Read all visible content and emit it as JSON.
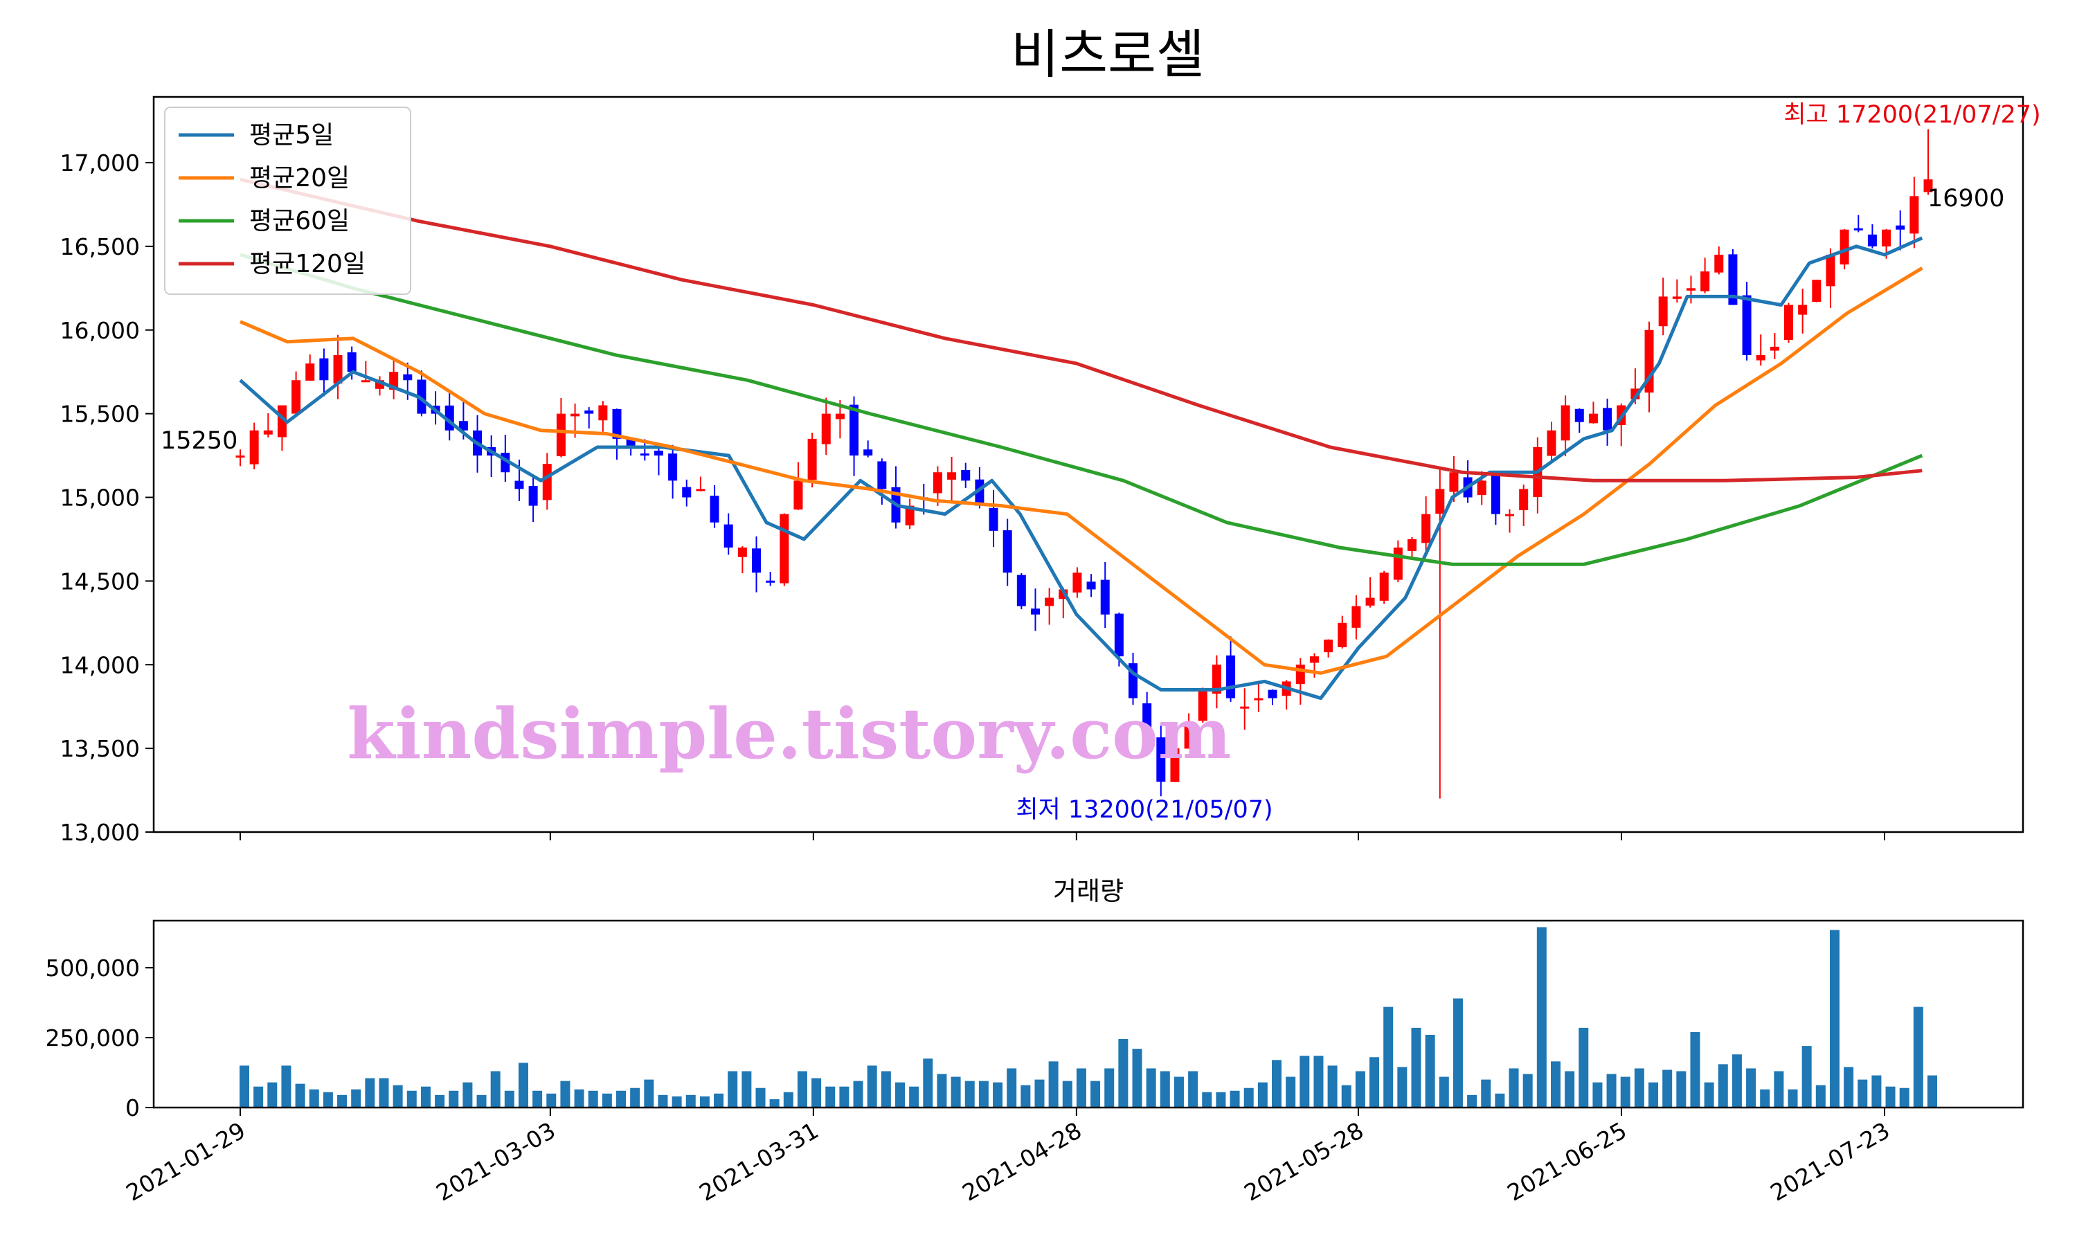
{
  "chart_data": [
    {
      "type": "candlestick",
      "title": "비츠로셀",
      "ylim": [
        13000,
        17500
      ],
      "yticks": [
        13000,
        13500,
        14000,
        14500,
        15000,
        15500,
        16000,
        16500,
        17000
      ],
      "ytick_labels": [
        "13,000",
        "13,500",
        "14,000",
        "14,500",
        "15,000",
        "15,500",
        "16,000",
        "16,500",
        "17,000"
      ],
      "x_range": [
        "2021-01-29",
        "2021-07-27"
      ],
      "xticks": [
        "2021-01-29",
        "2021-03-03",
        "2021-03-31",
        "2021-04-28",
        "2021-05-28",
        "2021-06-25",
        "2021-07-23"
      ],
      "grid": false,
      "legend_position": "top-left",
      "up_color": "#ff0000",
      "down_color": "#0000ff",
      "candles_anchor_closes": [
        [
          "2021-01-29",
          15250
        ],
        [
          "2021-02-05",
          15800
        ],
        [
          "2021-02-15",
          15700
        ],
        [
          "2021-03-02",
          15000
        ],
        [
          "2021-03-05",
          15600
        ],
        [
          "2021-03-17",
          15100
        ],
        [
          "2021-03-26",
          14500
        ],
        [
          "2021-04-01",
          15600
        ],
        [
          "2021-04-09",
          14900
        ],
        [
          "2021-04-16",
          15200
        ],
        [
          "2021-04-23",
          14300
        ],
        [
          "2021-04-30",
          14500
        ],
        [
          "2021-05-07",
          13300
        ],
        [
          "2021-05-12",
          14000
        ],
        [
          "2021-05-18",
          13700
        ],
        [
          "2021-05-25",
          14100
        ],
        [
          "2021-06-01",
          14700
        ],
        [
          "2021-06-07",
          15100
        ],
        [
          "2021-06-14",
          14900
        ],
        [
          "2021-06-17",
          15500
        ],
        [
          "2021-06-24",
          15400
        ],
        [
          "2021-06-30",
          16200
        ],
        [
          "2021-07-05",
          16500
        ],
        [
          "2021-07-09",
          15700
        ],
        [
          "2021-07-15",
          16300
        ],
        [
          "2021-07-19",
          16700
        ],
        [
          "2021-07-22",
          16400
        ],
        [
          "2021-07-27",
          16900
        ]
      ],
      "series": [
        {
          "name": "평균5일",
          "color": "#1f77b4",
          "points": [
            [
              "2021-01-29",
              15700
            ],
            [
              "2021-02-03",
              15450
            ],
            [
              "2021-02-10",
              15750
            ],
            [
              "2021-02-17",
              15600
            ],
            [
              "2021-02-23",
              15330
            ],
            [
              "2021-03-02",
              15100
            ],
            [
              "2021-03-08",
              15300
            ],
            [
              "2021-03-15",
              15300
            ],
            [
              "2021-03-22",
              15250
            ],
            [
              "2021-03-26",
              14850
            ],
            [
              "2021-03-30",
              14750
            ],
            [
              "2021-04-05",
              15100
            ],
            [
              "2021-04-09",
              14950
            ],
            [
              "2021-04-14",
              14900
            ],
            [
              "2021-04-19",
              15100
            ],
            [
              "2021-04-22",
              14900
            ],
            [
              "2021-04-28",
              14300
            ],
            [
              "2021-05-04",
              13950
            ],
            [
              "2021-05-07",
              13850
            ],
            [
              "2021-05-13",
              13850
            ],
            [
              "2021-05-18",
              13900
            ],
            [
              "2021-05-24",
              13800
            ],
            [
              "2021-05-28",
              14100
            ],
            [
              "2021-06-02",
              14400
            ],
            [
              "2021-06-07",
              15000
            ],
            [
              "2021-06-11",
              15150
            ],
            [
              "2021-06-16",
              15150
            ],
            [
              "2021-06-21",
              15350
            ],
            [
              "2021-06-24",
              15400
            ],
            [
              "2021-06-29",
              15800
            ],
            [
              "2021-07-02",
              16200
            ],
            [
              "2021-07-07",
              16200
            ],
            [
              "2021-07-12",
              16150
            ],
            [
              "2021-07-15",
              16400
            ],
            [
              "2021-07-20",
              16500
            ],
            [
              "2021-07-23",
              16450
            ],
            [
              "2021-07-27",
              16550
            ]
          ]
        },
        {
          "name": "평균20일",
          "color": "#ff7f0e",
          "points": [
            [
              "2021-01-29",
              16050
            ],
            [
              "2021-02-03",
              15930
            ],
            [
              "2021-02-10",
              15950
            ],
            [
              "2021-02-17",
              15750
            ],
            [
              "2021-02-24",
              15500
            ],
            [
              "2021-03-02",
              15400
            ],
            [
              "2021-03-09",
              15380
            ],
            [
              "2021-03-16",
              15300
            ],
            [
              "2021-03-23",
              15200
            ],
            [
              "2021-03-30",
              15100
            ],
            [
              "2021-04-06",
              15050
            ],
            [
              "2021-04-13",
              14980
            ],
            [
              "2021-04-20",
              14950
            ],
            [
              "2021-04-27",
              14900
            ],
            [
              "2021-05-04",
              14600
            ],
            [
              "2021-05-11",
              14300
            ],
            [
              "2021-05-18",
              14000
            ],
            [
              "2021-05-24",
              13950
            ],
            [
              "2021-05-31",
              14050
            ],
            [
              "2021-06-07",
              14350
            ],
            [
              "2021-06-14",
              14650
            ],
            [
              "2021-06-21",
              14900
            ],
            [
              "2021-06-28",
              15200
            ],
            [
              "2021-07-05",
              15550
            ],
            [
              "2021-07-12",
              15800
            ],
            [
              "2021-07-19",
              16100
            ],
            [
              "2021-07-27",
              16370
            ]
          ]
        },
        {
          "name": "평균60일",
          "color": "#2ca02c",
          "points": [
            [
              "2021-01-29",
              16450
            ],
            [
              "2021-02-10",
              16250
            ],
            [
              "2021-02-24",
              16050
            ],
            [
              "2021-03-10",
              15850
            ],
            [
              "2021-03-24",
              15700
            ],
            [
              "2021-04-06",
              15500
            ],
            [
              "2021-04-20",
              15300
            ],
            [
              "2021-05-03",
              15100
            ],
            [
              "2021-05-14",
              14850
            ],
            [
              "2021-05-26",
              14700
            ],
            [
              "2021-06-07",
              14600
            ],
            [
              "2021-06-21",
              14600
            ],
            [
              "2021-07-02",
              14750
            ],
            [
              "2021-07-14",
              14950
            ],
            [
              "2021-07-27",
              15250
            ]
          ]
        },
        {
          "name": "평균120일",
          "color": "#d62728",
          "points": [
            [
              "2021-01-29",
              16900
            ],
            [
              "2021-02-17",
              16650
            ],
            [
              "2021-03-03",
              16500
            ],
            [
              "2021-03-17",
              16300
            ],
            [
              "2021-03-31",
              16150
            ],
            [
              "2021-04-14",
              15950
            ],
            [
              "2021-04-28",
              15800
            ],
            [
              "2021-05-11",
              15550
            ],
            [
              "2021-05-25",
              15300
            ],
            [
              "2021-06-08",
              15150
            ],
            [
              "2021-06-22",
              15100
            ],
            [
              "2021-07-06",
              15100
            ],
            [
              "2021-07-20",
              15120
            ],
            [
              "2021-07-27",
              15160
            ]
          ]
        }
      ],
      "annotations": {
        "start_price": "15250",
        "end_price": "16900",
        "high": "최고 17200(21/07/27)",
        "low": "최저 13200(21/05/07)"
      },
      "watermark": "kindsimple.tistory.com"
    },
    {
      "type": "bar",
      "title": "거래량",
      "ylim": [
        0,
        680000
      ],
      "yticks": [
        0,
        250000,
        500000
      ],
      "ytick_labels": [
        "0",
        "250,000",
        "500,000"
      ],
      "color": "#1f77b4",
      "x_range": [
        "2021-01-29",
        "2021-07-27"
      ],
      "xticks": [
        "2021-01-29",
        "2021-03-03",
        "2021-03-31",
        "2021-04-28",
        "2021-05-28",
        "2021-06-25",
        "2021-07-23"
      ],
      "values": [
        150000,
        75000,
        90000,
        150000,
        85000,
        65000,
        55000,
        45000,
        65000,
        105000,
        105000,
        80000,
        60000,
        75000,
        45000,
        60000,
        90000,
        45000,
        130000,
        60000,
        160000,
        60000,
        50000,
        95000,
        65000,
        60000,
        50000,
        60000,
        70000,
        100000,
        45000,
        40000,
        45000,
        40000,
        50000,
        130000,
        130000,
        70000,
        30000,
        55000,
        130000,
        105000,
        75000,
        75000,
        95000,
        150000,
        130000,
        90000,
        75000,
        175000,
        120000,
        110000,
        95000,
        95000,
        90000,
        140000,
        80000,
        100000,
        165000,
        95000,
        140000,
        95000,
        140000,
        245000,
        210000,
        140000,
        130000,
        110000,
        130000,
        55000,
        55000,
        60000,
        70000,
        90000,
        170000,
        110000,
        185000,
        185000,
        150000,
        80000,
        130000,
        180000,
        360000,
        145000,
        285000,
        260000,
        110000,
        390000,
        45000,
        100000,
        50000,
        140000,
        120000,
        645000,
        165000,
        130000,
        285000,
        90000,
        120000,
        110000,
        140000,
        90000,
        135000,
        130000,
        270000,
        90000,
        155000,
        190000,
        140000,
        65000,
        130000,
        65000,
        220000,
        80000,
        635000,
        145000,
        100000,
        115000,
        75000,
        70000,
        360000,
        115000
      ]
    }
  ]
}
